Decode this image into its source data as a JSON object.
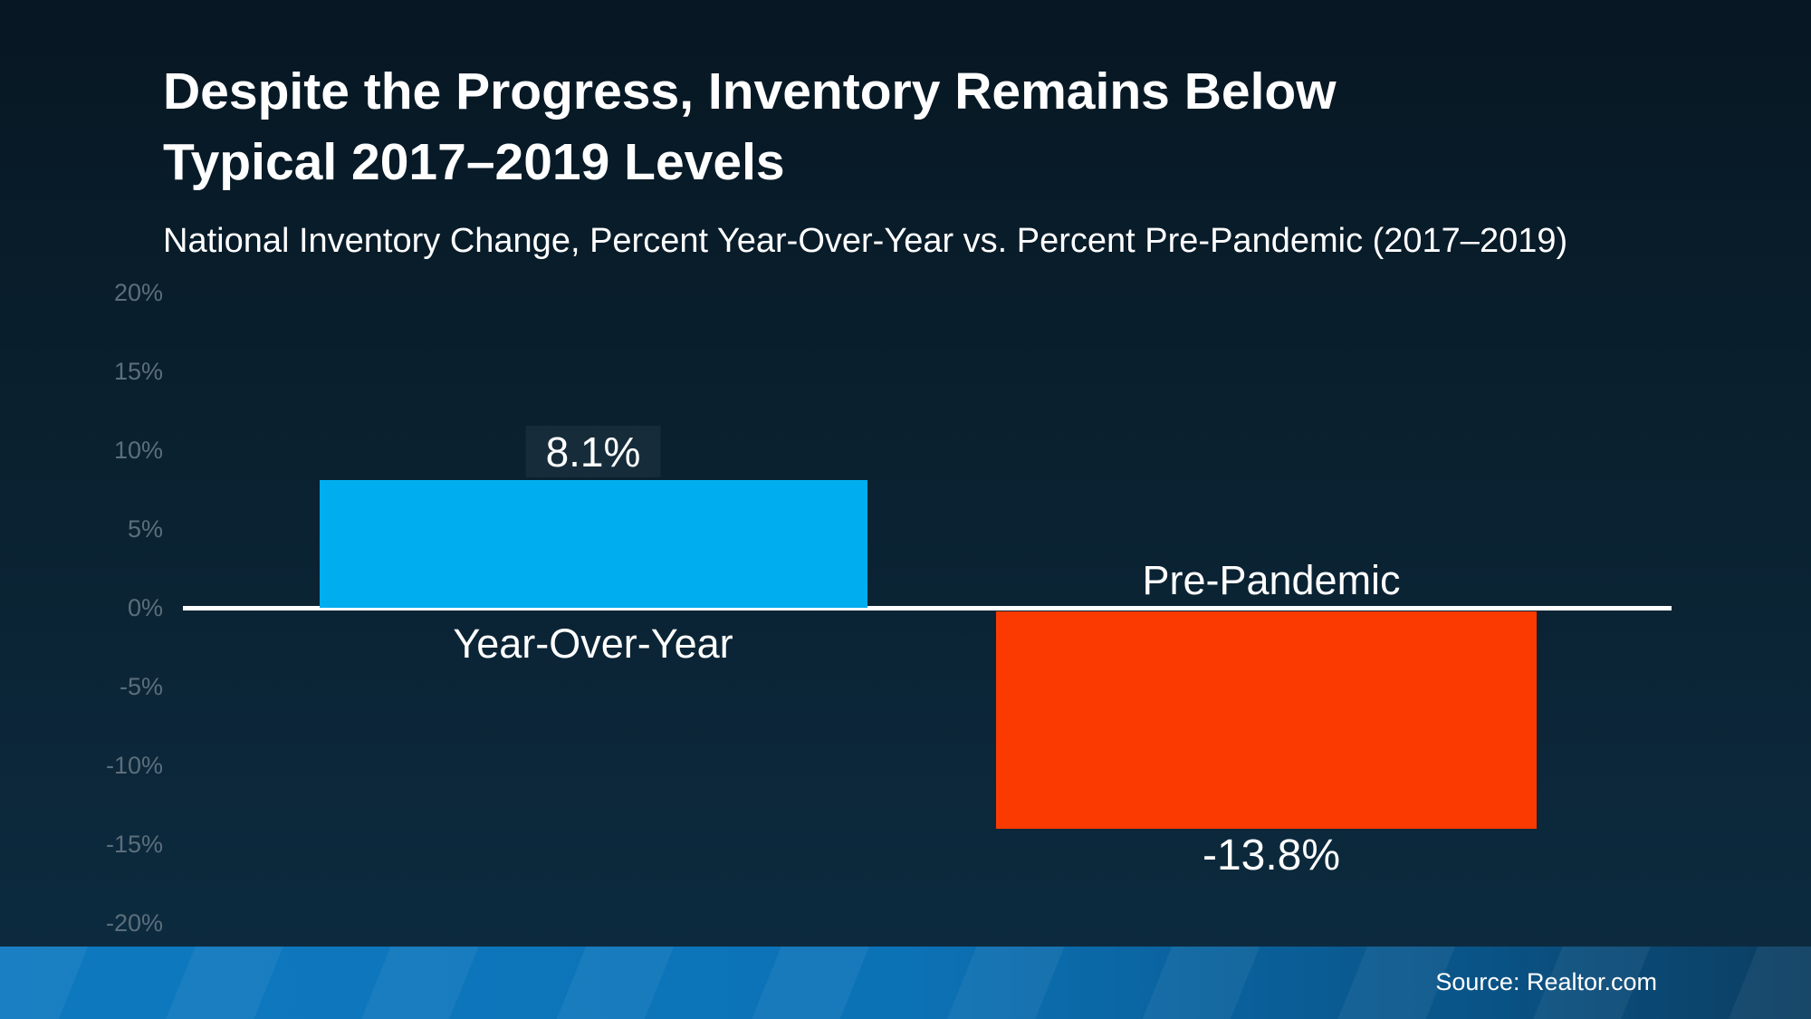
{
  "header": {
    "title_line1": "Despite the Progress, Inventory Remains Below",
    "title_line2": "Typical 2017–2019 Levels",
    "subtitle": "National Inventory Change, Percent Year-Over-Year vs. Percent Pre-Pandemic (2017–2019)"
  },
  "chart_data": {
    "type": "bar",
    "title": "Despite the Progress, Inventory Remains Below Typical 2017–2019 Levels",
    "subtitle": "National Inventory Change, Percent Year-Over-Year vs. Percent Pre-Pandemic (2017–2019)",
    "categories": [
      "Year-Over-Year",
      "Pre-Pandemic"
    ],
    "values": [
      8.1,
      -13.8
    ],
    "value_labels": [
      "8.1%",
      "-13.8%"
    ],
    "bar_colors": [
      "#00AEEF",
      "#FB3A01"
    ],
    "ylim": [
      -20,
      20
    ],
    "ytick_step": 5,
    "yticks": [
      {
        "value": 20,
        "label": "20%"
      },
      {
        "value": 15,
        "label": "15%"
      },
      {
        "value": 10,
        "label": "10%"
      },
      {
        "value": 5,
        "label": "5%"
      },
      {
        "value": 0,
        "label": "0%"
      },
      {
        "value": -5,
        "label": "-5%"
      },
      {
        "value": -10,
        "label": "-10%"
      },
      {
        "value": -15,
        "label": "-15%"
      },
      {
        "value": -20,
        "label": "-20%"
      }
    ],
    "grid": false,
    "legend": "none",
    "zero_baseline": true
  },
  "colors": {
    "background_top": "#071723",
    "background_bottom": "#0d2c41",
    "bar_positive": "#00AEEF",
    "bar_negative": "#FB3A01",
    "axis_label": "#5c6e7b",
    "zero_line": "#ffffff",
    "footer_blue": "#0c72b6"
  },
  "footer": {
    "source": "Source: Realtor.com"
  }
}
